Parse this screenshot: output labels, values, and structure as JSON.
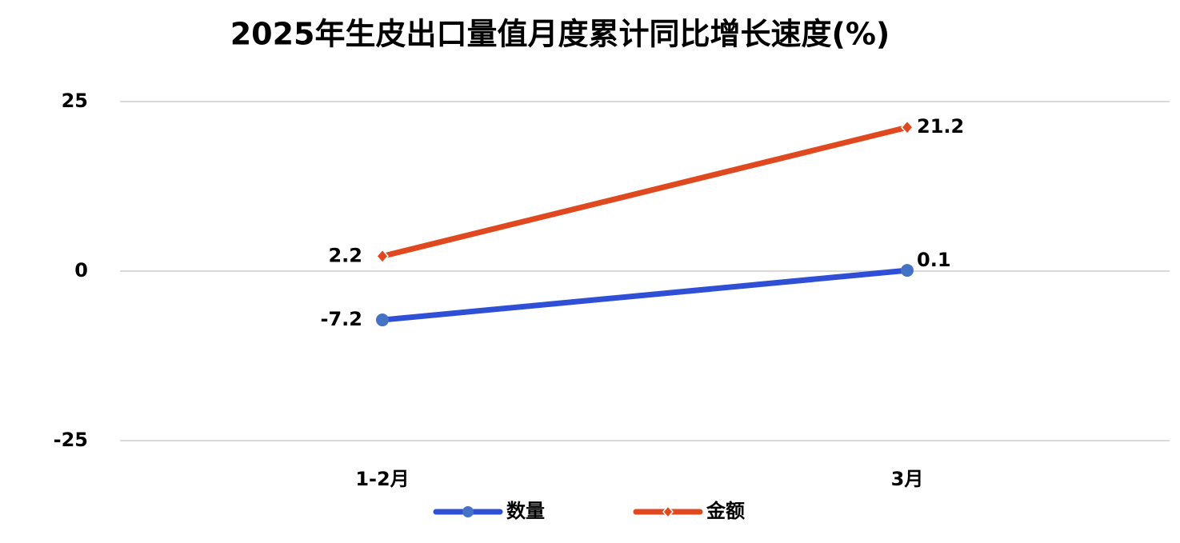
{
  "chart_data": {
    "type": "line",
    "title": "2025年生皮出口量值月度累计同比增长速度(%)",
    "categories": [
      "1-2月",
      "3月"
    ],
    "series": [
      {
        "name": "数量",
        "color": "#2f4fd6",
        "values": [
          -7.2,
          0.1
        ]
      },
      {
        "name": "金额",
        "color": "#e0491f",
        "values": [
          2.2,
          21.2
        ]
      }
    ],
    "ylim": [
      -25,
      25
    ],
    "yticks": [
      -25,
      0,
      25
    ],
    "grid": true,
    "legend": "bottom"
  }
}
